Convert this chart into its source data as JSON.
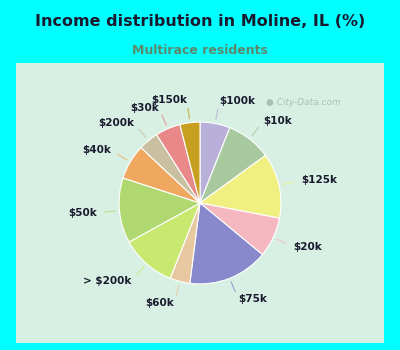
{
  "title": "Income distribution in Moline, IL (%)",
  "subtitle": "Multirace residents",
  "title_color": "#1a1a2e",
  "subtitle_color": "#5a8a6a",
  "background_color": "#00ffff",
  "chart_bg_left": "#d0ede0",
  "chart_bg_right": "#e8f8f0",
  "watermark": "City-Data.com",
  "labels": [
    "$100k",
    "$10k",
    "$125k",
    "$20k",
    "$75k",
    "$60k",
    "> $200k",
    "$50k",
    "$40k",
    "$200k",
    "$30k",
    "$150k"
  ],
  "values": [
    6,
    9,
    13,
    8,
    16,
    4,
    11,
    13,
    7,
    4,
    5,
    4
  ],
  "colors": [
    "#b8b0d8",
    "#a8c8a0",
    "#f0f080",
    "#f5b8c0",
    "#8888cc",
    "#e8c8a0",
    "#c8e870",
    "#b0d870",
    "#f0a860",
    "#c8c0a0",
    "#e88888",
    "#c8a020"
  ],
  "startangle": 90,
  "figsize": [
    4.0,
    3.5
  ],
  "dpi": 100
}
